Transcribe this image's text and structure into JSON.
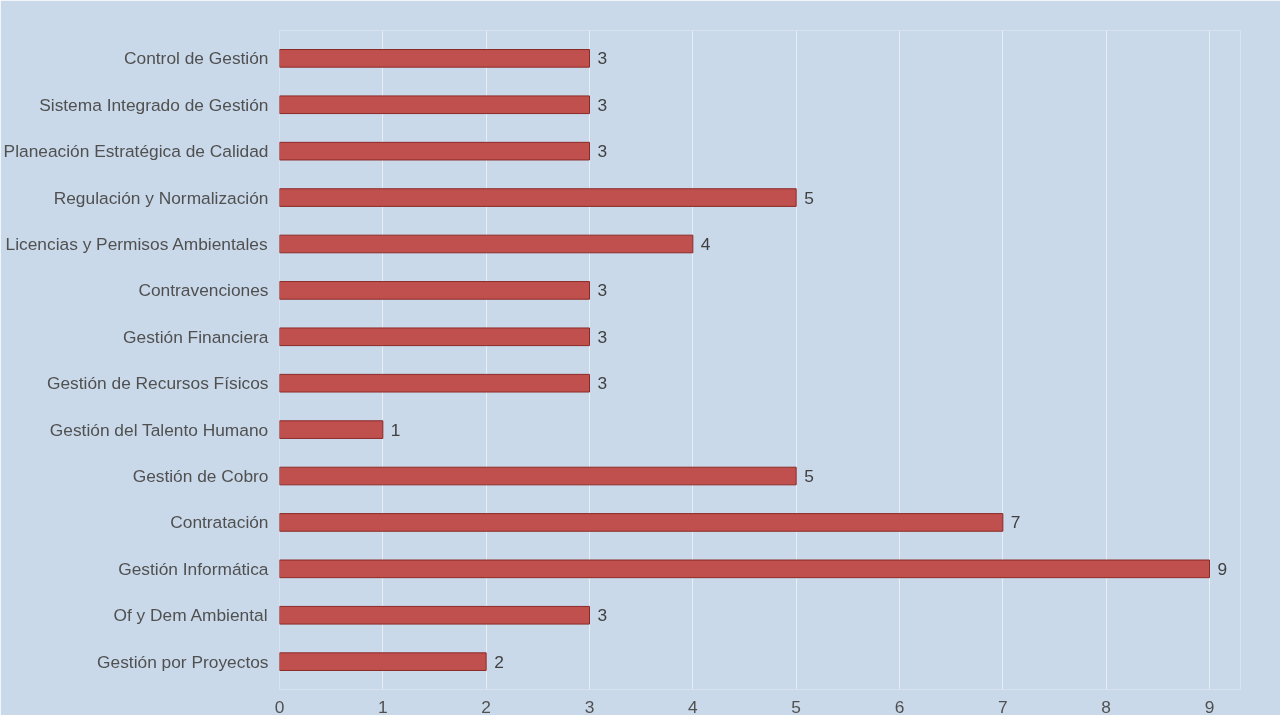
{
  "chart_data": {
    "type": "bar",
    "orientation": "horizontal",
    "categories": [
      "Control de Gestión",
      "Sistema Integrado de Gestión",
      "Planeación Estratégica de Calidad",
      "Regulación y Normalización",
      "Licencias y Permisos Ambientales",
      "Contravenciones",
      "Gestión Financiera",
      "Gestión de Recursos Físicos",
      "Gestión del Talento Humano",
      "Gestión de Cobro",
      "Contratación",
      "Gestión Informática",
      "Of y Dem Ambiental",
      "Gestión por Proyectos"
    ],
    "values": [
      3,
      3,
      3,
      5,
      4,
      3,
      3,
      3,
      1,
      5,
      7,
      9,
      3,
      2
    ],
    "color": "#c0504d",
    "xlim": [
      0,
      9.3
    ],
    "xticks": [
      0,
      1,
      2,
      3,
      4,
      5,
      6,
      7,
      8,
      9
    ],
    "grid": "x",
    "data_labels": true
  }
}
